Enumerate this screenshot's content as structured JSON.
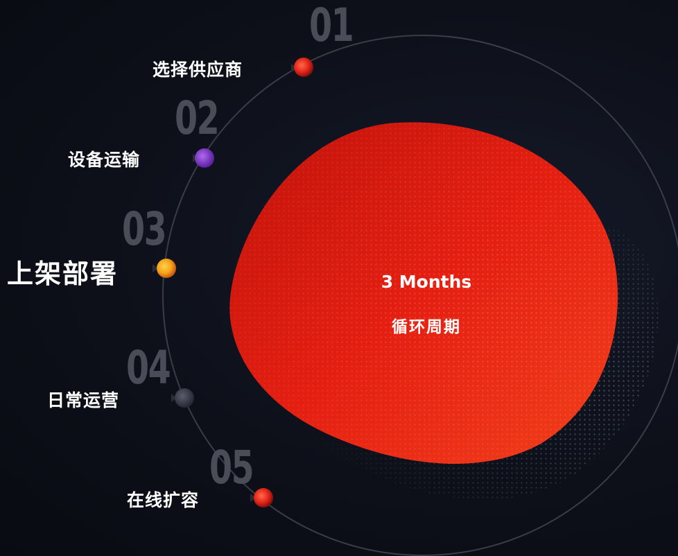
{
  "center": {
    "duration": "3 Months",
    "caption": "循环周期"
  },
  "steps": [
    {
      "number": "01",
      "label": "选择供应商",
      "dot_color": "#e8281e"
    },
    {
      "number": "02",
      "label": "设备运输",
      "dot_color": "#8a3bd6"
    },
    {
      "number": "03",
      "label": "上架部署",
      "dot_color": "#f5a21a"
    },
    {
      "number": "04",
      "label": "日常运营",
      "dot_color": "#3a3d4a"
    },
    {
      "number": "05",
      "label": "在线扩容",
      "dot_color": "#e8281e"
    }
  ],
  "colors": {
    "background": "#0b0d16",
    "blob_red": "#e32212",
    "ring": "#3a3d48",
    "number_gray": "#4a4d57"
  }
}
